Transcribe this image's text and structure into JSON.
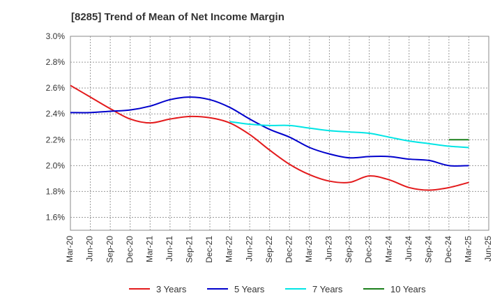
{
  "chart_data": {
    "type": "line",
    "title": "[8285]  Trend of Mean of Net Income Margin",
    "xlabel": "",
    "ylabel": "",
    "x_tick_labels": [
      "Mar-20",
      "Jun-20",
      "Sep-20",
      "Dec-20",
      "Mar-21",
      "Jun-21",
      "Sep-21",
      "Dec-21",
      "Mar-22",
      "Jun-22",
      "Sep-22",
      "Dec-22",
      "Mar-23",
      "Jun-23",
      "Sep-23",
      "Dec-23",
      "Mar-24",
      "Jun-24",
      "Sep-24",
      "Dec-24",
      "Mar-25",
      "Jun-25"
    ],
    "y_tick_labels": [
      "1.6%",
      "1.8%",
      "2.0%",
      "2.2%",
      "2.4%",
      "2.6%",
      "2.8%",
      "3.0%"
    ],
    "ylim": [
      1.5,
      3.0
    ],
    "grid": true,
    "legend_position": "bottom",
    "series": [
      {
        "name": "3 Years",
        "color": "#e31a1c",
        "x": [
          "Mar-20",
          "Jun-20",
          "Sep-20",
          "Dec-20",
          "Mar-21",
          "Jun-21",
          "Sep-21",
          "Dec-21",
          "Mar-22",
          "Jun-22",
          "Sep-22",
          "Dec-22",
          "Mar-23",
          "Jun-23",
          "Sep-23",
          "Dec-23",
          "Mar-24",
          "Jun-24",
          "Sep-24",
          "Dec-24",
          "Mar-25"
        ],
        "y": [
          2.62,
          2.53,
          2.44,
          2.36,
          2.33,
          2.36,
          2.38,
          2.37,
          2.33,
          2.24,
          2.12,
          2.01,
          1.93,
          1.88,
          1.87,
          1.92,
          1.89,
          1.83,
          1.81,
          1.83,
          1.87
        ]
      },
      {
        "name": "5 Years",
        "color": "#0000cc",
        "x": [
          "Mar-20",
          "Jun-20",
          "Sep-20",
          "Dec-20",
          "Mar-21",
          "Jun-21",
          "Sep-21",
          "Dec-21",
          "Mar-22",
          "Jun-22",
          "Sep-22",
          "Dec-22",
          "Mar-23",
          "Jun-23",
          "Sep-23",
          "Dec-23",
          "Mar-24",
          "Jun-24",
          "Sep-24",
          "Dec-24",
          "Mar-25"
        ],
        "y": [
          2.41,
          2.41,
          2.42,
          2.43,
          2.46,
          2.51,
          2.53,
          2.51,
          2.45,
          2.36,
          2.28,
          2.22,
          2.14,
          2.09,
          2.06,
          2.07,
          2.07,
          2.05,
          2.04,
          2.0,
          2.0
        ]
      },
      {
        "name": "7 Years",
        "color": "#00e5e5",
        "x": [
          "Mar-22",
          "Jun-22",
          "Sep-22",
          "Dec-22",
          "Mar-23",
          "Jun-23",
          "Sep-23",
          "Dec-23",
          "Mar-24",
          "Jun-24",
          "Sep-24",
          "Dec-24",
          "Mar-25"
        ],
        "y": [
          2.34,
          2.32,
          2.31,
          2.31,
          2.29,
          2.27,
          2.26,
          2.25,
          2.22,
          2.19,
          2.17,
          2.15,
          2.14
        ]
      },
      {
        "name": "10 Years",
        "color": "#1a7f1a",
        "x": [
          "Dec-24",
          "Mar-25"
        ],
        "y": [
          2.2,
          2.2
        ]
      }
    ]
  }
}
